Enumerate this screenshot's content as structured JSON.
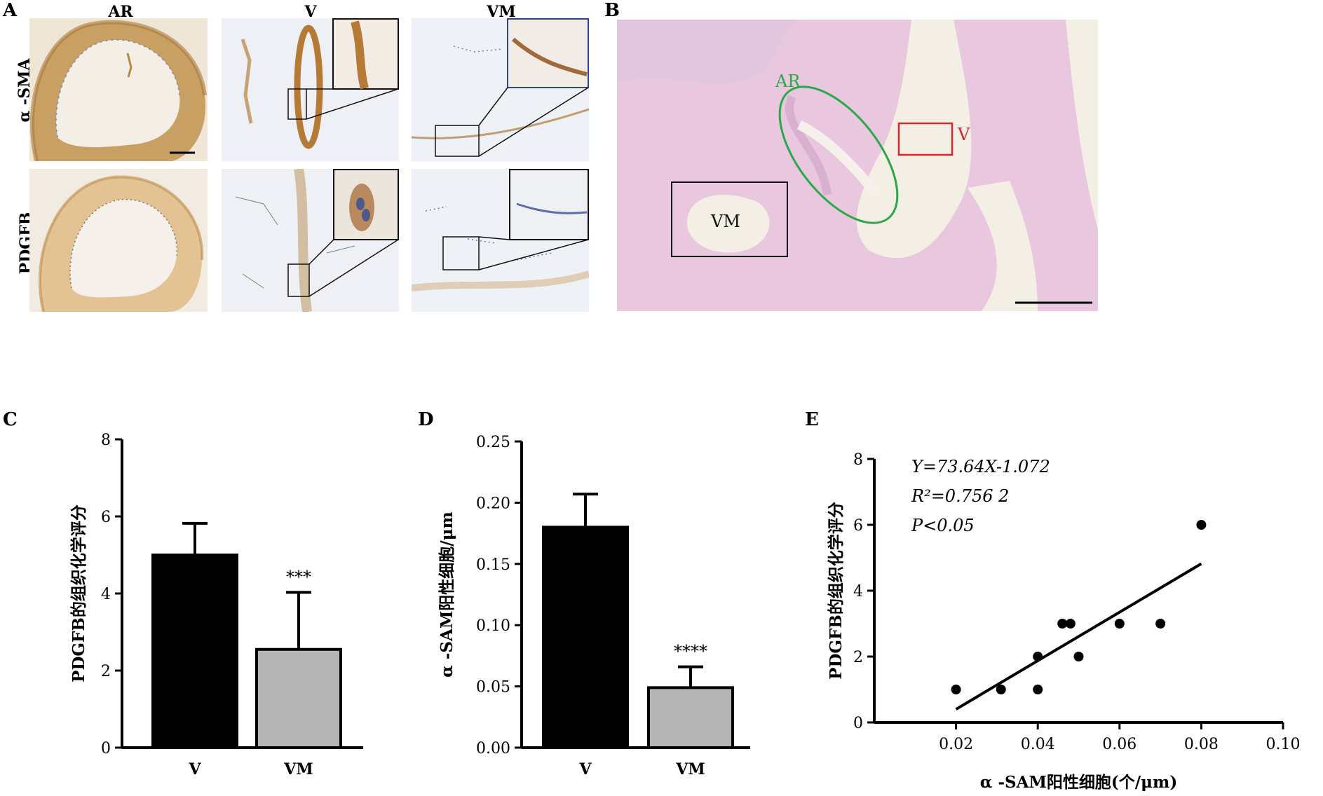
{
  "panels": {
    "A": {
      "label": "A",
      "columns": [
        "AR",
        "V",
        "VM"
      ],
      "rows": [
        "α -SMA",
        "PDGFB"
      ]
    },
    "B": {
      "label": "B",
      "annotations": [
        "AR",
        "V",
        "VM"
      ],
      "colors": {
        "ar_ellipse": "#2aa84a",
        "v_box": "#d9262a",
        "vm_box": "#111111"
      }
    },
    "C": {
      "label": "C"
    },
    "D": {
      "label": "D"
    },
    "E": {
      "label": "E"
    }
  },
  "chart_data": [
    {
      "id": "C",
      "type": "bar",
      "categories": [
        "V",
        "VM"
      ],
      "values": [
        5.0,
        2.55
      ],
      "errors": [
        0.82,
        1.48
      ],
      "significance": [
        "",
        "***"
      ],
      "ylabel": "PDGFB的组织化学评分",
      "xlabel": "",
      "ylim": [
        0,
        8
      ],
      "yticks": [
        0,
        2,
        4,
        6,
        8
      ],
      "colors": [
        "#000000",
        "#b4b4b4"
      ],
      "grid": false
    },
    {
      "id": "D",
      "type": "bar",
      "categories": [
        "V",
        "VM"
      ],
      "values": [
        0.18,
        0.049
      ],
      "errors": [
        0.027,
        0.017
      ],
      "significance": [
        "",
        "****"
      ],
      "ylabel": "α -SAM阳性细胞/μm",
      "xlabel": "",
      "ylim": [
        0,
        0.25
      ],
      "yticks": [
        "0.00",
        "0.05",
        "0.10",
        "0.15",
        "0.20",
        "0.25"
      ],
      "colors": [
        "#000000",
        "#b4b4b4"
      ],
      "grid": false
    },
    {
      "id": "E",
      "type": "scatter",
      "x": [
        0.02,
        0.031,
        0.04,
        0.04,
        0.046,
        0.048,
        0.05,
        0.06,
        0.07,
        0.08
      ],
      "y": [
        1,
        1,
        1,
        2,
        3,
        3,
        2,
        3,
        3,
        6
      ],
      "fit": {
        "slope": 73.64,
        "intercept": -1.072,
        "x_range": [
          0.02,
          0.08
        ]
      },
      "annotations": [
        "Y=73.64X-1.072",
        "R²=0.756 2",
        "P<0.05"
      ],
      "xlabel": "α -SAM阳性细胞(个/μm)",
      "ylabel": "PDGFB的组织化学评分",
      "xlim": [
        0,
        0.1
      ],
      "ylim": [
        0,
        8
      ],
      "xticks": [
        "0.02",
        "0.04",
        "0.06",
        "0.08",
        "0.10"
      ],
      "yticks": [
        0,
        2,
        4,
        6,
        8
      ],
      "grid": false
    }
  ]
}
